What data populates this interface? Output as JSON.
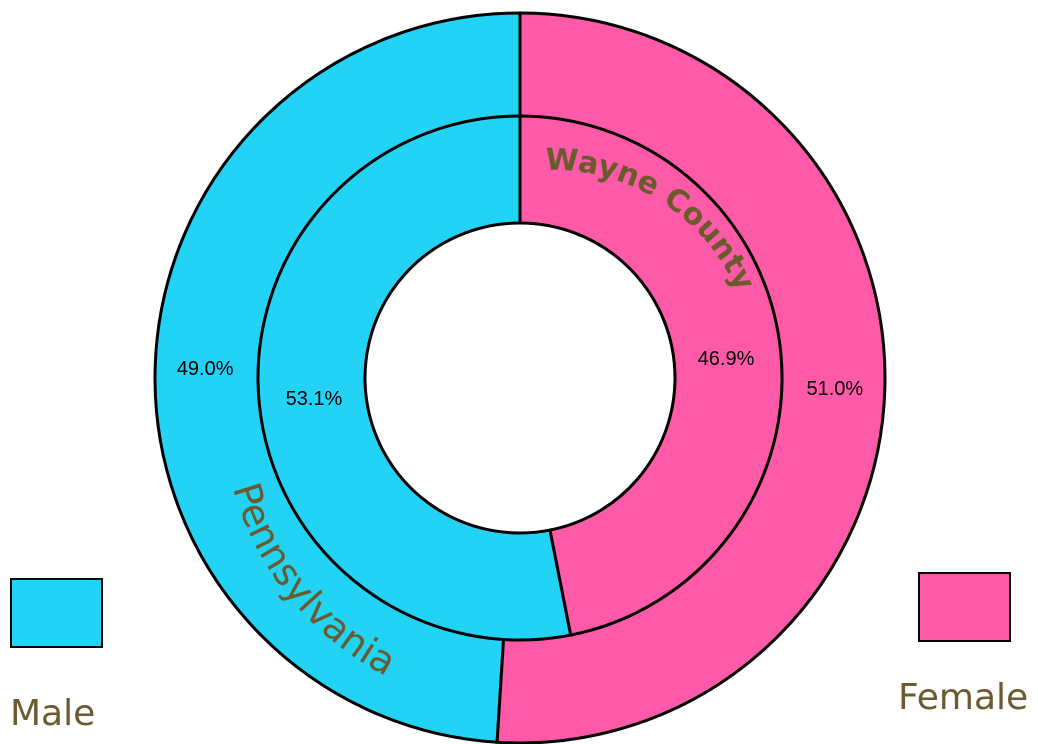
{
  "chart_data": {
    "type": "pie",
    "subtype": "nested-donut",
    "rings": [
      {
        "name": "Pennsylvania",
        "position": "outer",
        "values": [
          49.0,
          51.0
        ],
        "labels": [
          "49.0%",
          "51.0%"
        ]
      },
      {
        "name": "Wayne County",
        "position": "inner",
        "values": [
          53.1,
          46.9
        ],
        "labels": [
          "53.1%",
          "46.9%"
        ]
      }
    ],
    "categories": [
      "Male",
      "Female"
    ],
    "colors": {
      "Male": "#22d3f5",
      "Female": "#ff5aa8"
    },
    "legend": {
      "placement": "bottom-corners",
      "items": [
        "Male",
        "Female"
      ]
    }
  }
}
